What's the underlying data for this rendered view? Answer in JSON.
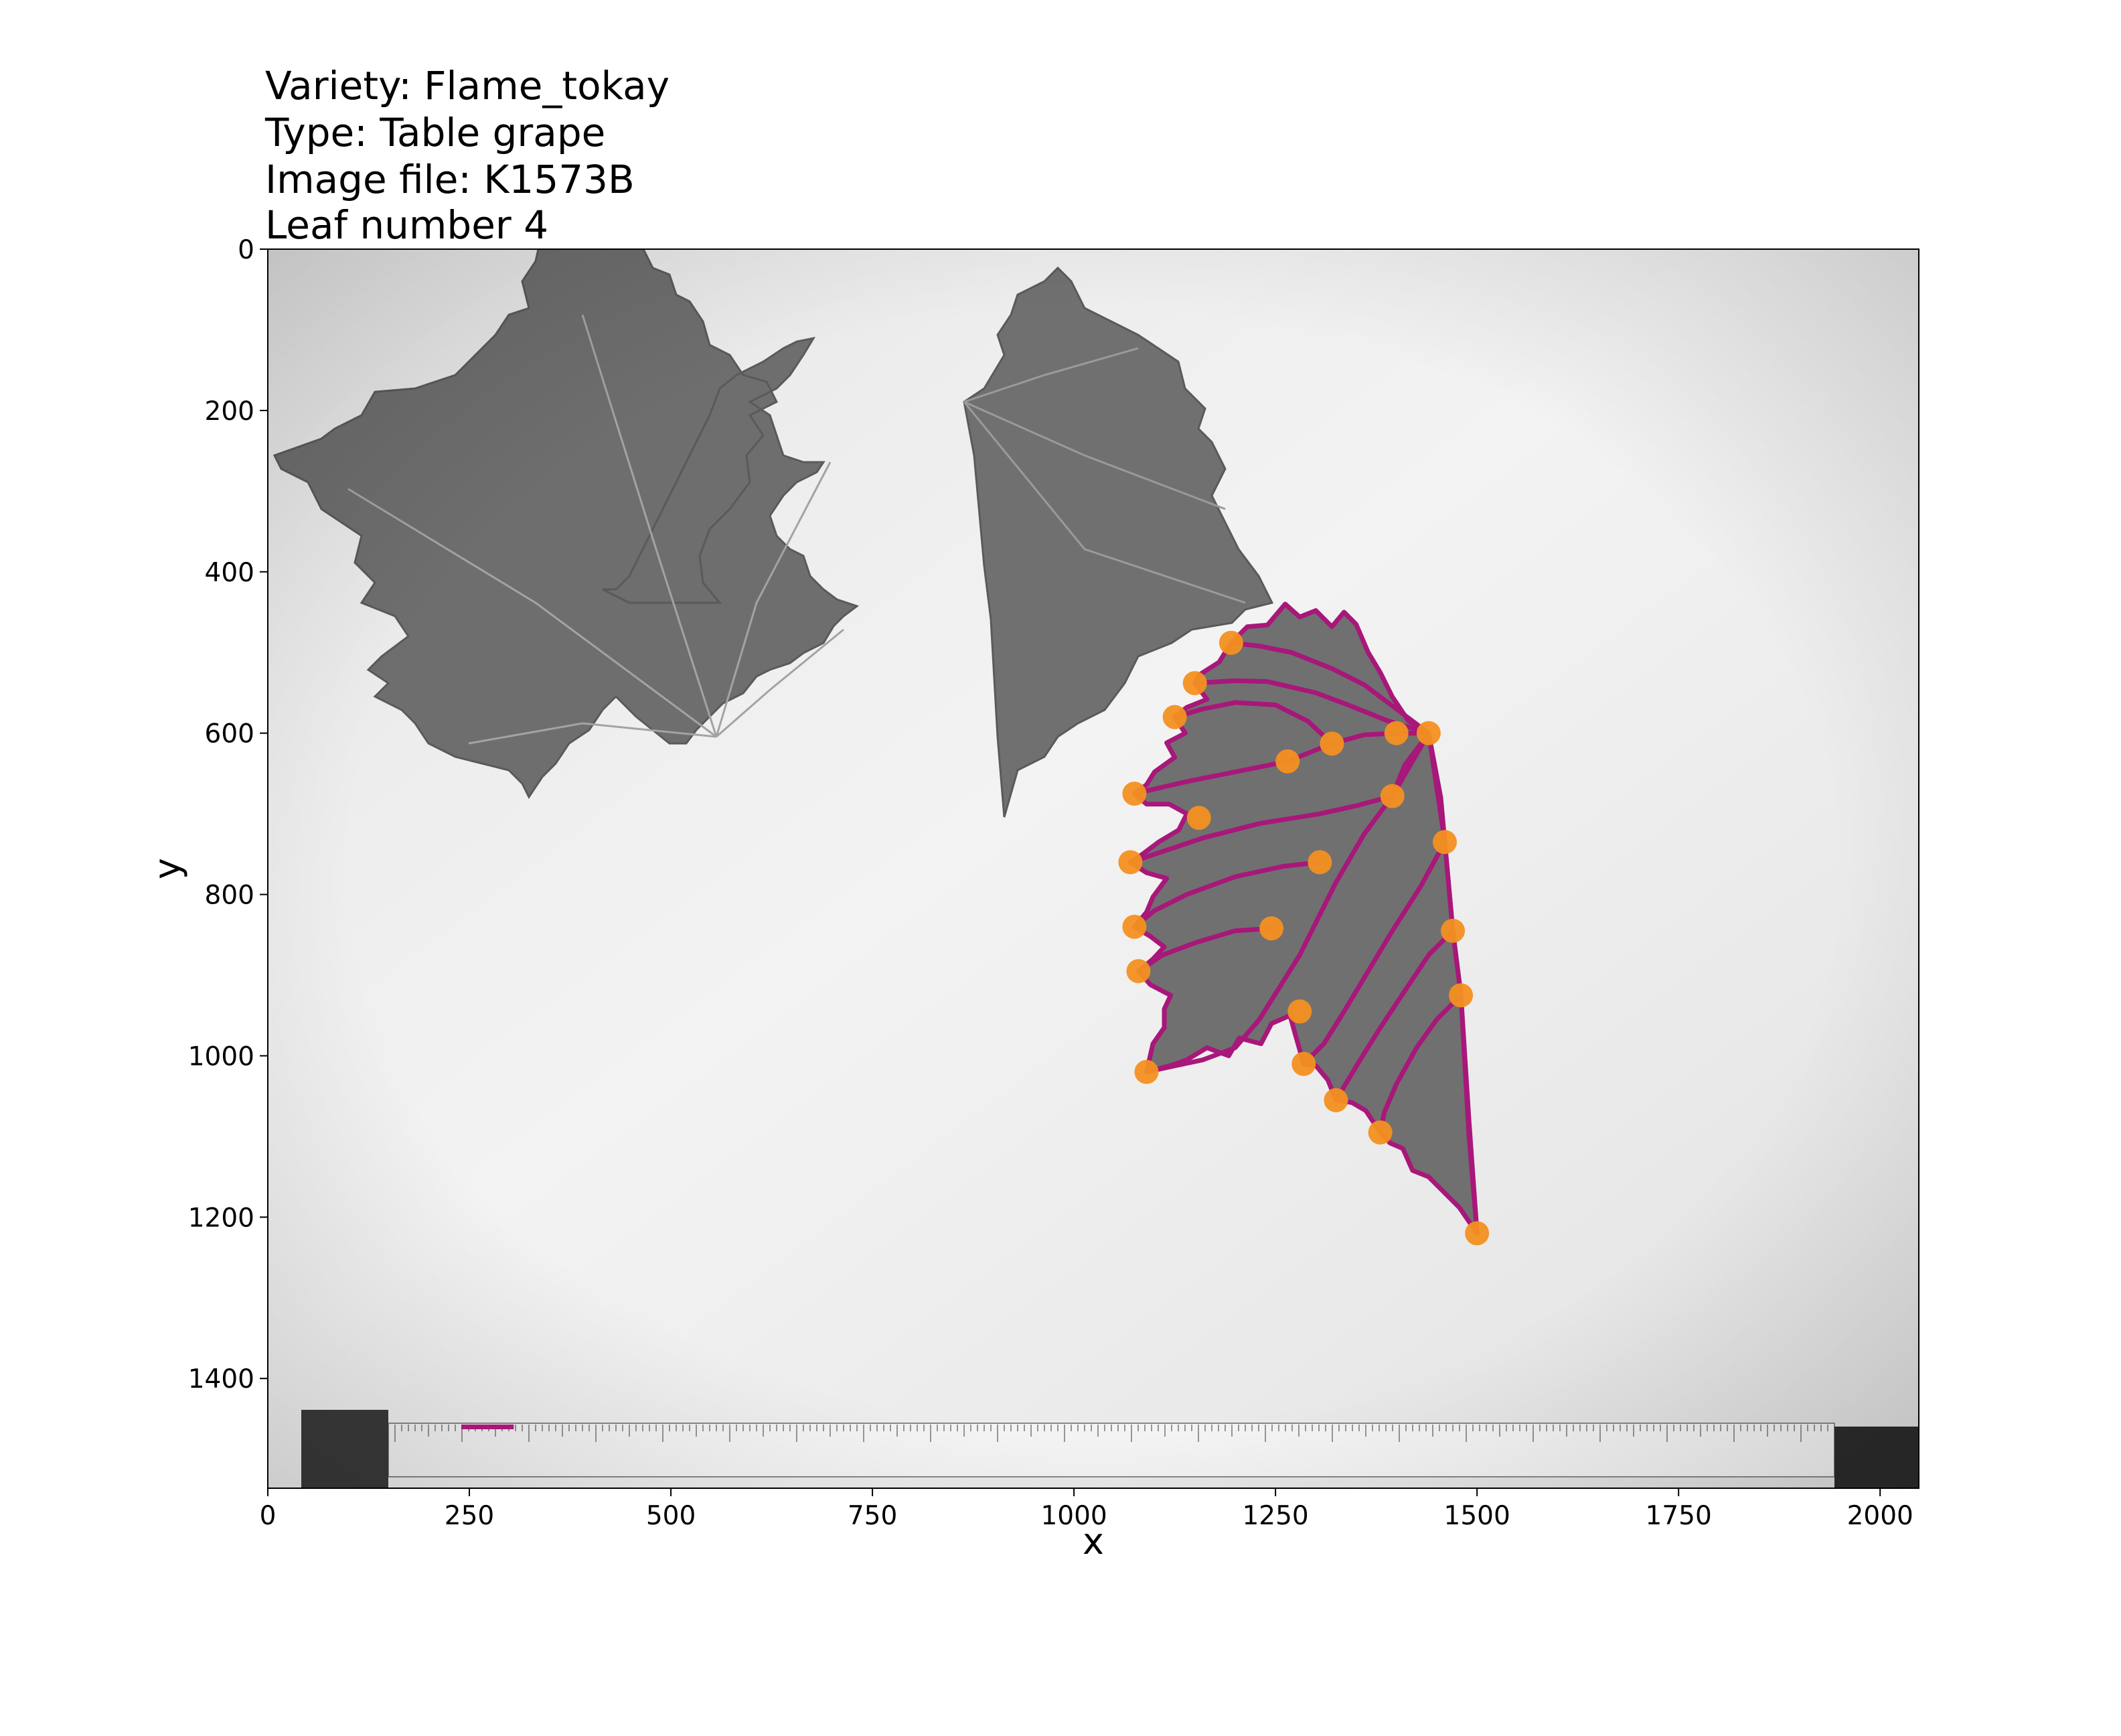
{
  "title_lines": [
    "Variety: Flame_tokay",
    "Type: Table grape",
    "Image file: K1573B",
    "Leaf number 4"
  ],
  "colors": {
    "outline": "#a8177a",
    "landmark": "#f39020",
    "leaf": "#707070",
    "leaf_vein": "#9a9a9a",
    "background": "#efefef",
    "scale_bar": "#a8177a"
  },
  "chart_data": {
    "type": "scatter",
    "title": "Variety: Flame_tokay\nType: Table grape\nImage file: K1573B\nLeaf number 4",
    "xlabel": "x",
    "ylabel": "y",
    "xlim": [
      0,
      2048
    ],
    "ylim": [
      1536,
      0
    ],
    "y_inverted": true,
    "xticks": [
      0,
      250,
      500,
      750,
      1000,
      1250,
      1500,
      1750,
      2000
    ],
    "yticks": [
      0,
      200,
      400,
      600,
      800,
      1000,
      1200,
      1400
    ],
    "grid": false,
    "legend": "none",
    "image": "grayscale photo of two grapevine leaves with a ruler along the bottom",
    "landmarks": [
      {
        "x": 1440,
        "y": 600
      },
      {
        "x": 1500,
        "y": 1220
      },
      {
        "x": 1195,
        "y": 488
      },
      {
        "x": 1150,
        "y": 538
      },
      {
        "x": 1125,
        "y": 580
      },
      {
        "x": 1075,
        "y": 675
      },
      {
        "x": 1070,
        "y": 760
      },
      {
        "x": 1075,
        "y": 840
      },
      {
        "x": 1080,
        "y": 895
      },
      {
        "x": 1090,
        "y": 1020
      },
      {
        "x": 1285,
        "y": 1010
      },
      {
        "x": 1325,
        "y": 1055
      },
      {
        "x": 1380,
        "y": 1095
      },
      {
        "x": 1400,
        "y": 600
      },
      {
        "x": 1320,
        "y": 613
      },
      {
        "x": 1265,
        "y": 635
      },
      {
        "x": 1155,
        "y": 705
      },
      {
        "x": 1395,
        "y": 678
      },
      {
        "x": 1305,
        "y": 760
      },
      {
        "x": 1245,
        "y": 842
      },
      {
        "x": 1280,
        "y": 945
      },
      {
        "x": 1460,
        "y": 735
      },
      {
        "x": 1470,
        "y": 845
      },
      {
        "x": 1480,
        "y": 925
      }
    ],
    "blade_outline": [
      [
        1440,
        600
      ],
      [
        1415,
        585
      ],
      [
        1395,
        555
      ],
      [
        1380,
        525
      ],
      [
        1365,
        500
      ],
      [
        1350,
        465
      ],
      [
        1335,
        450
      ],
      [
        1320,
        468
      ],
      [
        1300,
        448
      ],
      [
        1280,
        456
      ],
      [
        1262,
        440
      ],
      [
        1240,
        466
      ],
      [
        1215,
        468
      ],
      [
        1195,
        488
      ],
      [
        1180,
        512
      ],
      [
        1155,
        528
      ],
      [
        1150,
        538
      ],
      [
        1165,
        558
      ],
      [
        1140,
        568
      ],
      [
        1125,
        580
      ],
      [
        1138,
        600
      ],
      [
        1115,
        612
      ],
      [
        1125,
        630
      ],
      [
        1100,
        648
      ],
      [
        1090,
        664
      ],
      [
        1075,
        675
      ],
      [
        1090,
        688
      ],
      [
        1118,
        688
      ],
      [
        1140,
        700
      ],
      [
        1130,
        720
      ],
      [
        1105,
        735
      ],
      [
        1085,
        750
      ],
      [
        1070,
        760
      ],
      [
        1090,
        773
      ],
      [
        1115,
        780
      ],
      [
        1098,
        803
      ],
      [
        1090,
        822
      ],
      [
        1075,
        840
      ],
      [
        1095,
        852
      ],
      [
        1112,
        865
      ],
      [
        1098,
        880
      ],
      [
        1080,
        895
      ],
      [
        1095,
        912
      ],
      [
        1120,
        925
      ],
      [
        1112,
        942
      ],
      [
        1112,
        965
      ],
      [
        1098,
        985
      ],
      [
        1090,
        1020
      ],
      [
        1120,
        1012
      ],
      [
        1140,
        1005
      ],
      [
        1165,
        990
      ],
      [
        1192,
        1000
      ],
      [
        1205,
        978
      ],
      [
        1232,
        985
      ],
      [
        1245,
        960
      ],
      [
        1268,
        950
      ],
      [
        1275,
        975
      ],
      [
        1285,
        1010
      ],
      [
        1300,
        1012
      ],
      [
        1315,
        1030
      ],
      [
        1325,
        1055
      ],
      [
        1345,
        1058
      ],
      [
        1362,
        1068
      ],
      [
        1380,
        1095
      ],
      [
        1392,
        1108
      ],
      [
        1408,
        1115
      ],
      [
        1420,
        1142
      ],
      [
        1440,
        1150
      ],
      [
        1458,
        1168
      ],
      [
        1478,
        1188
      ],
      [
        1500,
        1220
      ],
      [
        1490,
        1100
      ],
      [
        1480,
        925
      ],
      [
        1470,
        845
      ],
      [
        1460,
        735
      ],
      [
        1455,
        680
      ],
      [
        1440,
        600
      ]
    ],
    "veins": [
      [
        [
          1440,
          600
        ],
        [
          1460,
          735
        ],
        [
          1470,
          845
        ],
        [
          1480,
          925
        ],
        [
          1490,
          1080
        ],
        [
          1500,
          1220
        ]
      ],
      [
        [
          1440,
          600
        ],
        [
          1410,
          640
        ],
        [
          1395,
          678
        ],
        [
          1360,
          725
        ],
        [
          1325,
          785
        ],
        [
          1300,
          835
        ],
        [
          1280,
          875
        ],
        [
          1255,
          915
        ],
        [
          1230,
          955
        ],
        [
          1200,
          990
        ],
        [
          1160,
          1005
        ],
        [
          1090,
          1020
        ]
      ],
      [
        [
          1440,
          600
        ],
        [
          1395,
          678
        ],
        [
          1350,
          690
        ],
        [
          1305,
          700
        ],
        [
          1230,
          712
        ],
        [
          1160,
          730
        ],
        [
          1070,
          760
        ]
      ],
      [
        [
          1440,
          600
        ],
        [
          1400,
          600
        ],
        [
          1360,
          602
        ],
        [
          1320,
          613
        ],
        [
          1265,
          635
        ],
        [
          1200,
          648
        ],
        [
          1140,
          660
        ],
        [
          1075,
          675
        ]
      ],
      [
        [
          1440,
          600
        ],
        [
          1400,
          570
        ],
        [
          1360,
          540
        ],
        [
          1320,
          520
        ],
        [
          1270,
          500
        ],
        [
          1230,
          492
        ],
        [
          1195,
          488
        ]
      ],
      [
        [
          1440,
          600
        ],
        [
          1390,
          585
        ],
        [
          1340,
          565
        ],
        [
          1300,
          550
        ],
        [
          1240,
          536
        ],
        [
          1200,
          535
        ],
        [
          1150,
          538
        ]
      ],
      [
        [
          1320,
          613
        ],
        [
          1290,
          585
        ],
        [
          1250,
          565
        ],
        [
          1200,
          562
        ],
        [
          1160,
          570
        ],
        [
          1125,
          580
        ]
      ],
      [
        [
          1305,
          760
        ],
        [
          1260,
          765
        ],
        [
          1200,
          778
        ],
        [
          1140,
          800
        ],
        [
          1100,
          820
        ],
        [
          1075,
          840
        ]
      ],
      [
        [
          1245,
          842
        ],
        [
          1200,
          845
        ],
        [
          1150,
          860
        ],
        [
          1110,
          875
        ],
        [
          1080,
          895
        ]
      ],
      [
        [
          1460,
          735
        ],
        [
          1430,
          790
        ],
        [
          1395,
          845
        ],
        [
          1365,
          895
        ],
        [
          1335,
          945
        ],
        [
          1310,
          985
        ],
        [
          1285,
          1010
        ]
      ],
      [
        [
          1470,
          845
        ],
        [
          1440,
          875
        ],
        [
          1410,
          920
        ],
        [
          1380,
          965
        ],
        [
          1355,
          1005
        ],
        [
          1325,
          1055
        ]
      ],
      [
        [
          1480,
          925
        ],
        [
          1450,
          955
        ],
        [
          1425,
          990
        ],
        [
          1400,
          1035
        ],
        [
          1385,
          1070
        ],
        [
          1380,
          1095
        ]
      ]
    ],
    "scale_bar": {
      "x": [
        240,
        305
      ],
      "y": 1460
    }
  }
}
